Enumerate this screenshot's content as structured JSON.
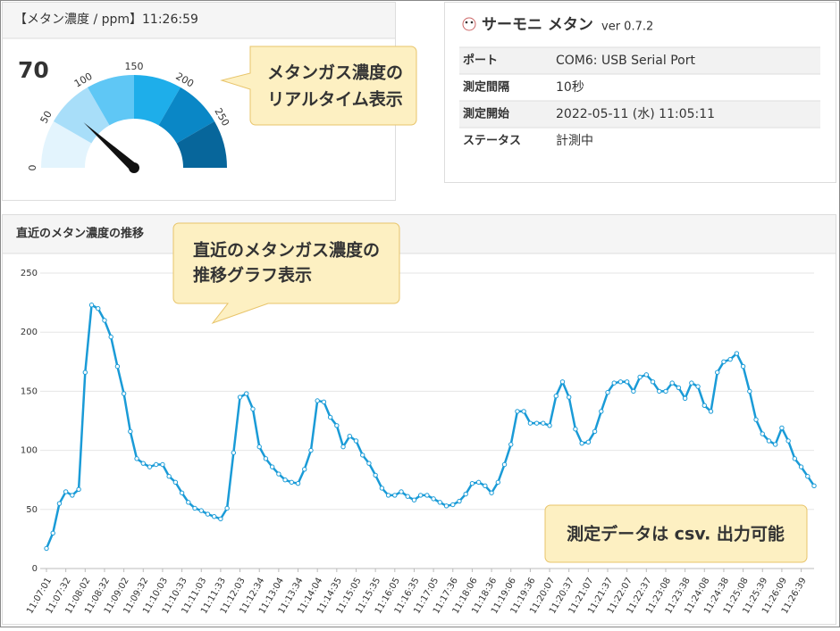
{
  "gauge_panel": {
    "header": "【メタン濃度 / ppm】11:26:59",
    "value": 70,
    "range": [
      0,
      300
    ],
    "ticks": [
      0,
      50,
      100,
      150,
      200,
      250
    ],
    "band_colors": [
      "#e3f4fd",
      "#a8def9",
      "#5fc7f5",
      "#1eaeea",
      "#0a87c6",
      "#07669b"
    ]
  },
  "gauge_callout": [
    "メタンガス濃度の",
    "リアルタイム表示"
  ],
  "info_panel": {
    "title": "サーモニ メタン",
    "version": "ver 0.7.2",
    "rows": [
      [
        "ポート",
        "COM6: USB Serial Port"
      ],
      [
        "測定間隔",
        "10秒"
      ],
      [
        "測定開始",
        "2022-05-11 (水) 11:05:11"
      ],
      [
        "ステータス",
        "計測中"
      ]
    ]
  },
  "chart_panel": {
    "header": "直近のメタン濃度の推移",
    "callout": [
      "直近のメタンガス濃度の",
      "推移グラフ表示"
    ],
    "note": "測定データは csv. 出力可能"
  },
  "chart_data": {
    "type": "line",
    "color": "#1a9bd7",
    "ylim": [
      0,
      250
    ],
    "yticks": [
      0,
      50,
      100,
      150,
      200,
      250
    ],
    "grid": true,
    "categories": [
      "11:07:01",
      null,
      null,
      "11:07:32",
      null,
      null,
      "11:08:02",
      null,
      null,
      "11:08:32",
      null,
      null,
      "11:09:02",
      null,
      null,
      "11:09:32",
      null,
      null,
      "11:10:03",
      null,
      null,
      "11:10:33",
      null,
      null,
      "11:11:03",
      null,
      null,
      "11:11:33",
      null,
      null,
      "11:12:03",
      null,
      null,
      "11:12:34",
      null,
      null,
      "11:13:04",
      null,
      null,
      "11:13:34",
      null,
      null,
      "11:14:04",
      null,
      null,
      "11:14:35",
      null,
      null,
      "11:15:05",
      null,
      null,
      "11:15:35",
      null,
      null,
      "11:16:05",
      null,
      null,
      "11:16:35",
      null,
      null,
      "11:17:05",
      null,
      null,
      "11:17:36",
      null,
      null,
      "11:18:06",
      null,
      null,
      "11:18:36",
      null,
      null,
      "11:19:06",
      null,
      null,
      "11:19:36",
      null,
      null,
      "11:20:07",
      null,
      null,
      "11:20:37",
      null,
      null,
      "11:21:07",
      null,
      null,
      "11:21:37",
      null,
      null,
      "11:22:07",
      null,
      null,
      "11:22:37",
      null,
      null,
      "11:23:08",
      null,
      null,
      "11:23:38",
      null,
      null,
      "11:24:08",
      null,
      null,
      "11:24:38",
      null,
      null,
      "11:25:08",
      null,
      null,
      "11:25:39",
      null,
      null,
      "11:26:09",
      null,
      null,
      "11:26:39",
      null,
      null
    ],
    "values": [
      17,
      30,
      55,
      65,
      62,
      67,
      166,
      223,
      220,
      210,
      196,
      171,
      148,
      116,
      93,
      89,
      86,
      88,
      88,
      78,
      73,
      64,
      56,
      51,
      49,
      46,
      44,
      42,
      51,
      98,
      145,
      148,
      135,
      103,
      93,
      86,
      80,
      75,
      73,
      72,
      84,
      100,
      142,
      141,
      128,
      121,
      103,
      112,
      108,
      96,
      89,
      79,
      68,
      62,
      62,
      65,
      61,
      58,
      62,
      62,
      59,
      56,
      53,
      54,
      57,
      63,
      72,
      73,
      70,
      64,
      73,
      88,
      105,
      133,
      133,
      123,
      123,
      123,
      121,
      146,
      158,
      145,
      118,
      106,
      107,
      116,
      133,
      149,
      157,
      158,
      158,
      150,
      162,
      164,
      158,
      150,
      150,
      157,
      153,
      144,
      157,
      154,
      138,
      133,
      166,
      175,
      177,
      182,
      171,
      150,
      126,
      114,
      108,
      105,
      119,
      108,
      93,
      86,
      78,
      70
    ]
  }
}
